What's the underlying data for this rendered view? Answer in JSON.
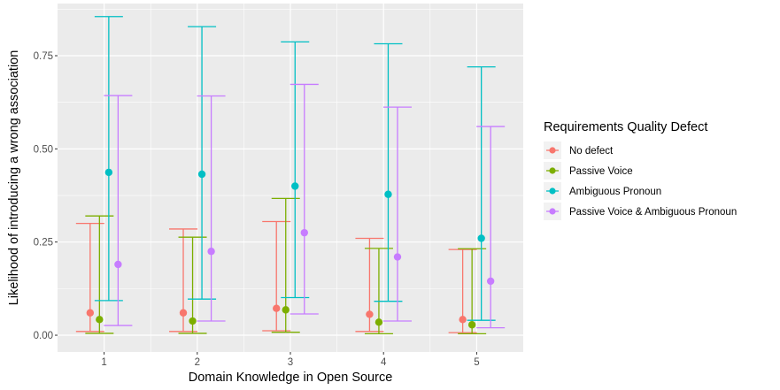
{
  "chart_data": {
    "type": "scatter",
    "xlabel": "Domain Knowledge in Open Source",
    "ylabel": "Likelihood of introducing a wrong association",
    "x_ticks": [
      "1",
      "2",
      "3",
      "4",
      "5"
    ],
    "y_ticks": [
      "0.00",
      "0.25",
      "0.50",
      "0.75"
    ],
    "ylim": [
      -0.045,
      0.89
    ],
    "grid": true,
    "legend": {
      "title": "Requirements Quality Defect",
      "position": "right"
    },
    "series": [
      {
        "name": "No defect",
        "color": "#F8766D",
        "points": [
          {
            "x": 1,
            "y": 0.06,
            "lower": 0.01,
            "upper": 0.3
          },
          {
            "x": 2,
            "y": 0.06,
            "lower": 0.01,
            "upper": 0.285
          },
          {
            "x": 3,
            "y": 0.072,
            "lower": 0.012,
            "upper": 0.305
          },
          {
            "x": 4,
            "y": 0.056,
            "lower": 0.01,
            "upper": 0.26
          },
          {
            "x": 5,
            "y": 0.042,
            "lower": 0.007,
            "upper": 0.23
          }
        ]
      },
      {
        "name": "Passive Voice",
        "color": "#7CAE00",
        "points": [
          {
            "x": 1,
            "y": 0.042,
            "lower": 0.005,
            "upper": 0.32
          },
          {
            "x": 2,
            "y": 0.038,
            "lower": 0.005,
            "upper": 0.263
          },
          {
            "x": 3,
            "y": 0.068,
            "lower": 0.008,
            "upper": 0.367
          },
          {
            "x": 4,
            "y": 0.035,
            "lower": 0.004,
            "upper": 0.233
          },
          {
            "x": 5,
            "y": 0.028,
            "lower": 0.004,
            "upper": 0.232
          }
        ]
      },
      {
        "name": "Ambiguous Pronoun",
        "color": "#00BFC4",
        "points": [
          {
            "x": 1,
            "y": 0.437,
            "lower": 0.093,
            "upper": 0.855
          },
          {
            "x": 2,
            "y": 0.432,
            "lower": 0.097,
            "upper": 0.828
          },
          {
            "x": 3,
            "y": 0.4,
            "lower": 0.101,
            "upper": 0.787
          },
          {
            "x": 4,
            "y": 0.378,
            "lower": 0.091,
            "upper": 0.782
          },
          {
            "x": 5,
            "y": 0.26,
            "lower": 0.04,
            "upper": 0.72
          }
        ]
      },
      {
        "name": "Passive Voice & Ambiguous Pronoun",
        "color": "#C77CFF",
        "points": [
          {
            "x": 1,
            "y": 0.19,
            "lower": 0.026,
            "upper": 0.643
          },
          {
            "x": 2,
            "y": 0.225,
            "lower": 0.038,
            "upper": 0.642
          },
          {
            "x": 3,
            "y": 0.275,
            "lower": 0.057,
            "upper": 0.673
          },
          {
            "x": 4,
            "y": 0.21,
            "lower": 0.038,
            "upper": 0.612
          },
          {
            "x": 5,
            "y": 0.145,
            "lower": 0.02,
            "upper": 0.56
          }
        ]
      }
    ]
  }
}
